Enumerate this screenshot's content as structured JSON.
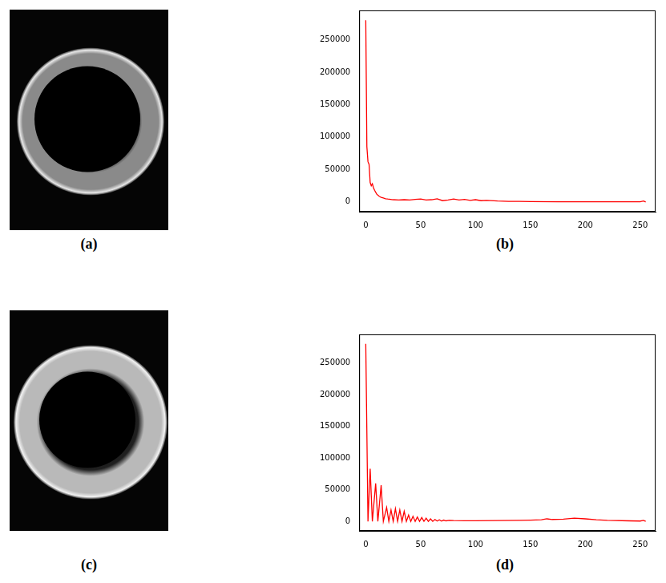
{
  "images": [
    {
      "label": "(a)"
    },
    {
      "label": "(c)"
    }
  ],
  "chart_data": [
    {
      "type": "line",
      "title": "(b)",
      "x": [
        0,
        1,
        2,
        3,
        4,
        5,
        6,
        7,
        8,
        10,
        12,
        14,
        16,
        18,
        20,
        25,
        30,
        35,
        40,
        45,
        50,
        55,
        60,
        65,
        70,
        75,
        80,
        85,
        90,
        95,
        100,
        105,
        110,
        120,
        130,
        140,
        150,
        175,
        200,
        225,
        250,
        253,
        255
      ],
      "values": [
        280000,
        85000,
        62000,
        58000,
        30000,
        25000,
        28000,
        22000,
        18000,
        12000,
        9000,
        7000,
        6000,
        5000,
        4500,
        3500,
        3000,
        3500,
        3000,
        4000,
        4500,
        3000,
        3500,
        5000,
        2000,
        3000,
        4500,
        3000,
        4000,
        2500,
        3500,
        2000,
        2500,
        1500,
        1000,
        800,
        600,
        400,
        300,
        200,
        200,
        1500,
        0
      ],
      "color": "#ff0000",
      "xlim": [
        -6,
        264
      ],
      "xticks": [
        0,
        50,
        100,
        150,
        200,
        250
      ],
      "ylim": [
        -15000,
        295000
      ],
      "yticks": [
        0,
        50000,
        100000,
        150000,
        200000,
        250000
      ],
      "grid": false
    },
    {
      "type": "line",
      "title": "(d)",
      "x": [
        0,
        2,
        4,
        6,
        9,
        11,
        14,
        16,
        19,
        21,
        23,
        25,
        27,
        29,
        31,
        33,
        35,
        37,
        39,
        41,
        43,
        45,
        47,
        49,
        51,
        53,
        55,
        57,
        59,
        61,
        63,
        65,
        67,
        69,
        71,
        73,
        76,
        80,
        90,
        100,
        120,
        140,
        150,
        160,
        165,
        170,
        180,
        190,
        200,
        210,
        220,
        240,
        250,
        253,
        255
      ],
      "values": [
        280000,
        0,
        83000,
        0,
        60000,
        0,
        57000,
        0,
        22000,
        0,
        18000,
        0,
        20000,
        0,
        18000,
        0,
        16000,
        0,
        10000,
        0,
        8000,
        0,
        7000,
        0,
        6000,
        0,
        5000,
        0,
        4000,
        0,
        3000,
        500,
        2500,
        500,
        2000,
        800,
        1500,
        1200,
        1000,
        1000,
        1200,
        1500,
        2000,
        2500,
        4000,
        3000,
        3500,
        5000,
        4000,
        2500,
        1500,
        800,
        500,
        1500,
        0
      ],
      "color": "#ff0000",
      "xlim": [
        -6,
        264
      ],
      "xticks": [
        0,
        50,
        100,
        150,
        200,
        250
      ],
      "ylim": [
        -15000,
        295000
      ],
      "yticks": [
        0,
        50000,
        100000,
        150000,
        200000,
        250000
      ],
      "grid": false
    }
  ]
}
